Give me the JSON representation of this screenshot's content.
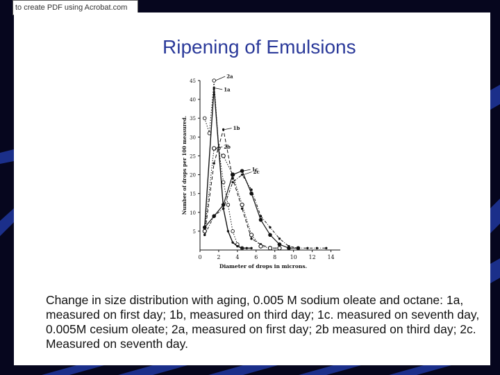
{
  "watermark": {
    "text": "to create PDF using Acrobat.com"
  },
  "slide": {
    "title": "Ripening of Emulsions",
    "caption": "Change in size distribution with aging, 0.005 M sodium oleate and octane: 1a, measured on first day; 1b, measured on third day; 1c. measured on seventh day, 0.005M cesium oleate; 2a, measured on first day; 2b measured on third day; 2c. Measured on seventh day."
  },
  "colors": {
    "background": "#06061e",
    "stripe": "#1b2f8a",
    "title": "#2b3a9a",
    "ink": "#111111"
  },
  "chart_data": {
    "type": "line",
    "xlabel": "Diameter of drops in microns.",
    "ylabel": "Number of drops per 100 measured.",
    "xlim": [
      0,
      15
    ],
    "ylim": [
      0,
      45
    ],
    "xticks": [
      0,
      2,
      4,
      6,
      8,
      10,
      12,
      14
    ],
    "yticks": [
      5,
      10,
      15,
      20,
      25,
      30,
      35,
      40,
      45
    ],
    "grid": false,
    "series": [
      {
        "name": "2a",
        "x": [
          0.5,
          1.0,
          1.5,
          2.0,
          2.5,
          3.0,
          3.5,
          4.0,
          4.5
        ],
        "y": [
          35,
          31,
          45,
          27,
          18,
          12,
          5,
          1.5,
          0.5
        ]
      },
      {
        "name": "1a",
        "x": [
          0.5,
          1.5,
          2.5,
          3.0,
          3.5,
          4.0,
          4.5,
          5.0,
          5.5
        ],
        "y": [
          6,
          43,
          11,
          5,
          2,
          1,
          0.5,
          0.5,
          0.5
        ]
      },
      {
        "name": "1b",
        "x": [
          0.5,
          1.5,
          2.5,
          3.5,
          4.5,
          5.5,
          6.5,
          7.5,
          8.5
        ],
        "y": [
          4,
          23,
          32,
          19,
          11,
          3,
          1.5,
          0.5,
          0.5
        ]
      },
      {
        "name": "2b",
        "x": [
          0.5,
          1.5,
          2.5,
          3.5,
          4.5,
          5.5,
          6.5,
          7.5,
          8.5
        ],
        "y": [
          5,
          27,
          25,
          20,
          12,
          4,
          1,
          0.5,
          0.5
        ]
      },
      {
        "name": "1c",
        "x": [
          0.5,
          1.5,
          2.5,
          3.5,
          4.5,
          5.5,
          6.5,
          7.5,
          8.5,
          9.5,
          10.5
        ],
        "y": [
          6,
          9,
          12,
          20,
          21,
          15,
          8,
          4,
          1.5,
          0.5,
          0.5
        ]
      },
      {
        "name": "2c",
        "x": [
          0.5,
          1.5,
          2.5,
          3.5,
          4.5,
          5.5,
          6.5,
          7.5,
          8.5,
          9.5,
          10.5,
          11.5,
          12.5,
          13.5
        ],
        "y": [
          4,
          9,
          11,
          18,
          20,
          16,
          9,
          6,
          3,
          1,
          0.5,
          0.5,
          0.5,
          0.5
        ]
      }
    ]
  }
}
